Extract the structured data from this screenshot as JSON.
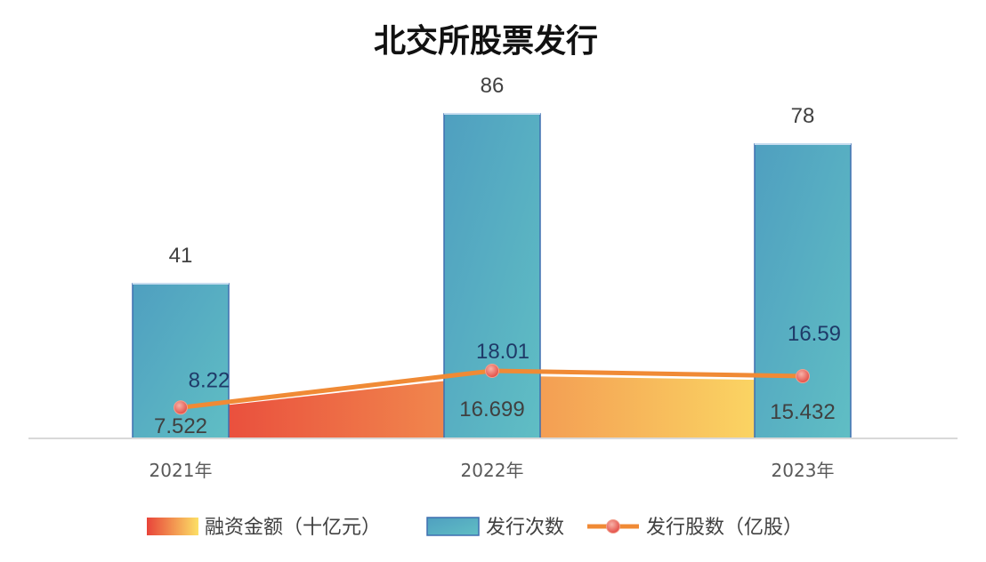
{
  "chart_data": {
    "type": "bar",
    "title": "北交所股票发行",
    "categories": [
      "2021年",
      "2022年",
      "2023年"
    ],
    "series": [
      {
        "name": "融资金额（十亿元）",
        "type": "area",
        "values": [
          7.522,
          16.699,
          15.432
        ],
        "colors": {
          "from": "#E8443A",
          "to": "#FCE066"
        }
      },
      {
        "name": "发行次数",
        "type": "bar",
        "values": [
          41,
          86,
          78
        ],
        "colors": {
          "fill": "#5BB6C2",
          "edge": "#3F6FB0"
        }
      },
      {
        "name": "发行股数（亿股）",
        "type": "line",
        "values": [
          8.22,
          18.01,
          16.59
        ],
        "colors": {
          "line": "#F08A35",
          "marker": "#E8504A"
        }
      }
    ],
    "grid": false,
    "legend_position": "bottom"
  }
}
